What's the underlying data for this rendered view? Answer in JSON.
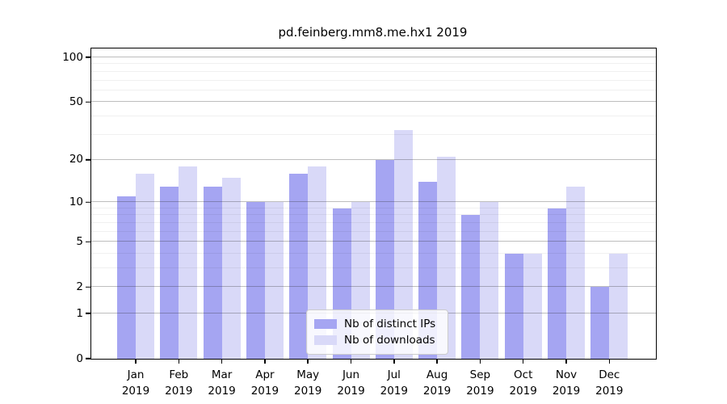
{
  "chart_data": {
    "type": "bar",
    "title": "pd.feinberg.mm8.me.hx1 2019",
    "categories": [
      "Jan",
      "Feb",
      "Mar",
      "Apr",
      "May",
      "Jun",
      "Jul",
      "Aug",
      "Sep",
      "Oct",
      "Nov",
      "Dec"
    ],
    "category_year_label": "2019",
    "series": [
      {
        "name": "Nb of distinct IPs",
        "color": "#a5a5f2",
        "values": [
          11,
          13,
          13,
          10,
          16,
          9,
          20,
          14,
          8,
          4,
          9,
          2
        ]
      },
      {
        "name": "Nb of downloads",
        "color": "#d9d9f8",
        "values": [
          16,
          18,
          15,
          10,
          18,
          10,
          32,
          21,
          10,
          4,
          13,
          4
        ]
      }
    ],
    "y_axis": {
      "scale": "log10(x+1)",
      "tick_labels": [
        100,
        50,
        20,
        10,
        5,
        2,
        1,
        0
      ],
      "minor_gridlines": [
        3,
        4,
        6,
        7,
        8,
        9,
        30,
        40,
        60,
        70,
        80,
        90
      ],
      "top_value": 115
    },
    "x_axis": {
      "tick_count": 12
    },
    "grid": true,
    "legend": {
      "position": "bottom-center",
      "entries": [
        "Nb of distinct IPs",
        "Nb of downloads"
      ]
    }
  },
  "colors": {
    "background": "#ffffff",
    "axis": "#000000",
    "bar_ips": "#a5a5f2",
    "bar_downloads": "#d9d9f8",
    "major_grid": "rgba(40,40,40,0.30)",
    "minor_grid": "rgba(0,0,0,0.06)",
    "legend_border": "#cccccc"
  }
}
